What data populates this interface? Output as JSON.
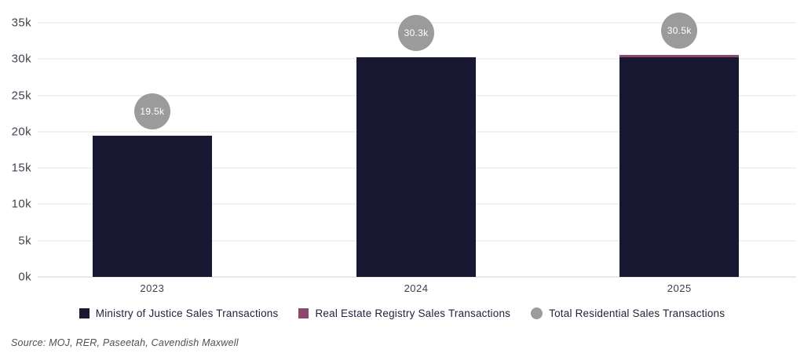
{
  "chart_data": {
    "type": "bar",
    "stacked": true,
    "title": "",
    "xlabel": "",
    "ylabel": "",
    "categories": [
      "2023",
      "2024",
      "2025"
    ],
    "series": [
      {
        "name": "Ministry of Justice Sales Transactions",
        "color": "#181833",
        "values": [
          19500,
          30300,
          30300
        ]
      },
      {
        "name": "Real Estate Registry Sales Transactions",
        "color": "#8b4a6c",
        "values": [
          0,
          0,
          200
        ]
      },
      {
        "name": "Total Residential Sales Transactions",
        "color": "#9b9b9b",
        "role": "total-label-circle",
        "labels": [
          "19.5k",
          "30.3k",
          "30.5k"
        ],
        "totals": [
          19500,
          30300,
          30500
        ]
      }
    ],
    "ylim": [
      0,
      35000
    ],
    "ytick_step": 5000,
    "ytick_labels": [
      "0k",
      "5k",
      "10k",
      "15k",
      "20k",
      "25k",
      "30k",
      "35k"
    ],
    "grid": true,
    "legend_position": "bottom"
  },
  "source_note": "Source: MOJ, RER, Paseetah, Cavendish Maxwell"
}
